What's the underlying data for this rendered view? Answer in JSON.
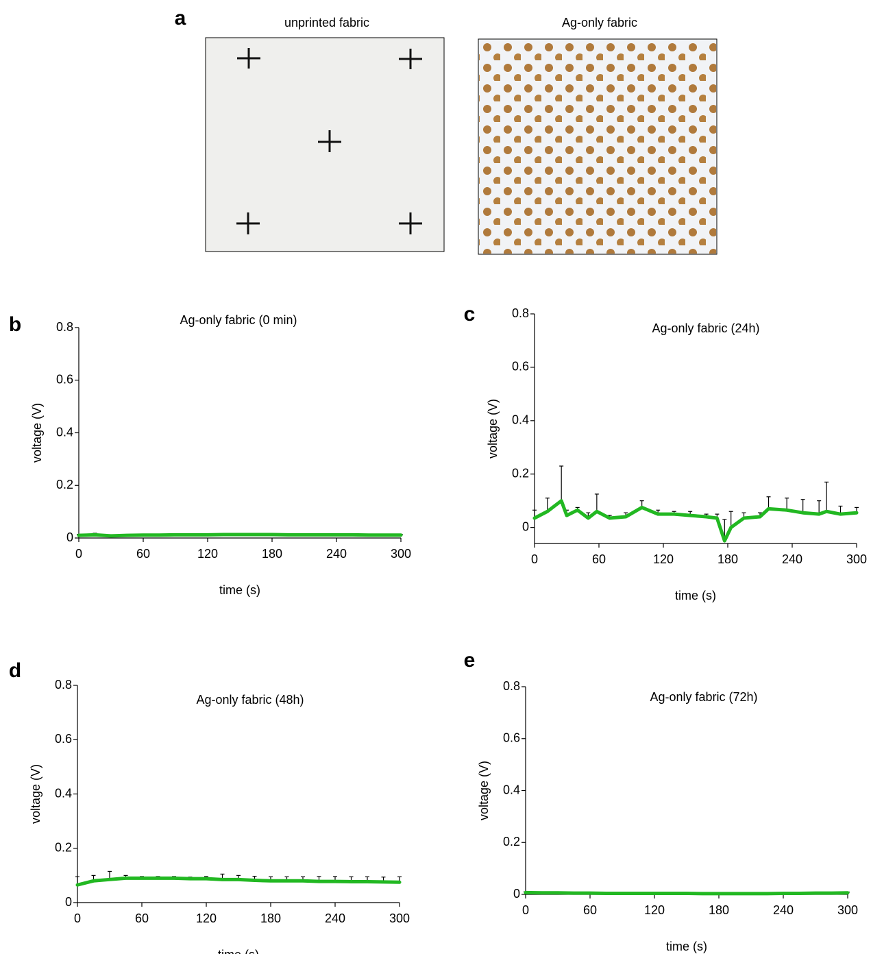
{
  "panel_a": {
    "label": "a",
    "images": [
      {
        "title": "unprinted fabric"
      },
      {
        "title": "Ag-only fabric"
      }
    ]
  },
  "chart_data": [
    {
      "type": "line",
      "panel_label": "b",
      "title": "Ag-only fabric (0 min)",
      "xlabel": "time (s)",
      "ylabel": "voltage (V)",
      "x": [
        0,
        15,
        30,
        45,
        60,
        75,
        90,
        105,
        120,
        135,
        150,
        165,
        180,
        195,
        210,
        225,
        240,
        255,
        270,
        285,
        300
      ],
      "values": [
        0.01,
        0.012,
        0.008,
        0.01,
        0.011,
        0.011,
        0.012,
        0.012,
        0.012,
        0.013,
        0.013,
        0.013,
        0.013,
        0.012,
        0.012,
        0.012,
        0.012,
        0.012,
        0.011,
        0.011,
        0.011
      ],
      "errors": [
        0.004,
        0.006,
        0.004,
        0.003,
        0.003,
        0.003,
        0.003,
        0.003,
        0.003,
        0.003,
        0.003,
        0.003,
        0.003,
        0.003,
        0.003,
        0.003,
        0.003,
        0.003,
        0.003,
        0.002,
        0.002
      ],
      "color": "#22b822",
      "error_color": "#000000",
      "xlim": [
        0,
        300
      ],
      "ylim": [
        0,
        0.8
      ],
      "xticks": [
        0,
        60,
        120,
        180,
        240,
        300
      ],
      "yticks": [
        0,
        0.2,
        0.4,
        0.6,
        0.8
      ]
    },
    {
      "type": "line",
      "panel_label": "c",
      "title": "Ag-only fabric (24h)",
      "xlabel": "time (s)",
      "ylabel": "voltage (V)",
      "x": [
        0,
        12,
        25,
        30,
        40,
        50,
        58,
        70,
        85,
        100,
        115,
        130,
        145,
        160,
        170,
        177,
        183,
        195,
        210,
        218,
        235,
        250,
        265,
        272,
        285,
        300
      ],
      "values": [
        0.035,
        0.06,
        0.1,
        0.045,
        0.065,
        0.035,
        0.06,
        0.035,
        0.04,
        0.075,
        0.05,
        0.05,
        0.045,
        0.04,
        0.035,
        -0.05,
        0.0,
        0.035,
        0.04,
        0.07,
        0.065,
        0.055,
        0.05,
        0.06,
        0.05,
        0.055
      ],
      "errors": [
        0.03,
        0.05,
        0.13,
        0.02,
        0.01,
        0.02,
        0.065,
        0.01,
        0.015,
        0.025,
        0.015,
        0.01,
        0.015,
        0.01,
        0.015,
        0.08,
        0.06,
        0.02,
        0.015,
        0.045,
        0.045,
        0.05,
        0.05,
        0.11,
        0.03,
        0.02
      ],
      "color": "#22b822",
      "error_color": "#000000",
      "xlim": [
        0,
        300
      ],
      "ylim": [
        -0.06,
        0.8
      ],
      "xticks": [
        0,
        60,
        120,
        180,
        240,
        300
      ],
      "yticks": [
        0,
        0.2,
        0.4,
        0.6,
        0.8
      ]
    },
    {
      "type": "line",
      "panel_label": "d",
      "title": "Ag-only fabric (48h)",
      "xlabel": "time (s)",
      "ylabel": "voltage (V)",
      "x": [
        0,
        15,
        30,
        45,
        60,
        75,
        90,
        105,
        120,
        135,
        150,
        165,
        180,
        195,
        210,
        225,
        240,
        255,
        270,
        285,
        300
      ],
      "values": [
        0.065,
        0.08,
        0.085,
        0.09,
        0.09,
        0.09,
        0.09,
        0.088,
        0.088,
        0.085,
        0.085,
        0.082,
        0.08,
        0.08,
        0.08,
        0.078,
        0.078,
        0.077,
        0.077,
        0.076,
        0.075
      ],
      "errors": [
        0.03,
        0.02,
        0.03,
        0.01,
        0.006,
        0.006,
        0.006,
        0.006,
        0.008,
        0.02,
        0.015,
        0.015,
        0.015,
        0.015,
        0.015,
        0.018,
        0.018,
        0.018,
        0.018,
        0.018,
        0.02
      ],
      "color": "#22b822",
      "error_color": "#000000",
      "xlim": [
        0,
        300
      ],
      "ylim": [
        0,
        0.8
      ],
      "xticks": [
        0,
        60,
        120,
        180,
        240,
        300
      ],
      "yticks": [
        0,
        0.2,
        0.4,
        0.6,
        0.8
      ]
    },
    {
      "type": "line",
      "panel_label": "e",
      "title": "Ag-only fabric (72h)",
      "xlabel": "time (s)",
      "ylabel": "voltage (V)",
      "x": [
        0,
        15,
        30,
        45,
        60,
        75,
        90,
        105,
        120,
        135,
        150,
        165,
        180,
        195,
        210,
        225,
        240,
        255,
        270,
        285,
        300
      ],
      "values": [
        0.007,
        0.006,
        0.006,
        0.005,
        0.005,
        0.004,
        0.004,
        0.004,
        0.004,
        0.004,
        0.004,
        0.003,
        0.003,
        0.003,
        0.003,
        0.003,
        0.004,
        0.004,
        0.005,
        0.005,
        0.006
      ],
      "errors": [
        0.003,
        0.003,
        0.003,
        0.003,
        0.003,
        0.003,
        0.004,
        0.003,
        0.003,
        0.003,
        0.003,
        0.003,
        0.003,
        0.003,
        0.003,
        0.003,
        0.003,
        0.003,
        0.003,
        0.003,
        0.003
      ],
      "color": "#22b822",
      "error_color": "#000000",
      "xlim": [
        0,
        300
      ],
      "ylim": [
        0,
        0.8
      ],
      "xticks": [
        0,
        60,
        120,
        180,
        240,
        300
      ],
      "yticks": [
        0,
        0.2,
        0.4,
        0.6,
        0.8
      ]
    }
  ]
}
